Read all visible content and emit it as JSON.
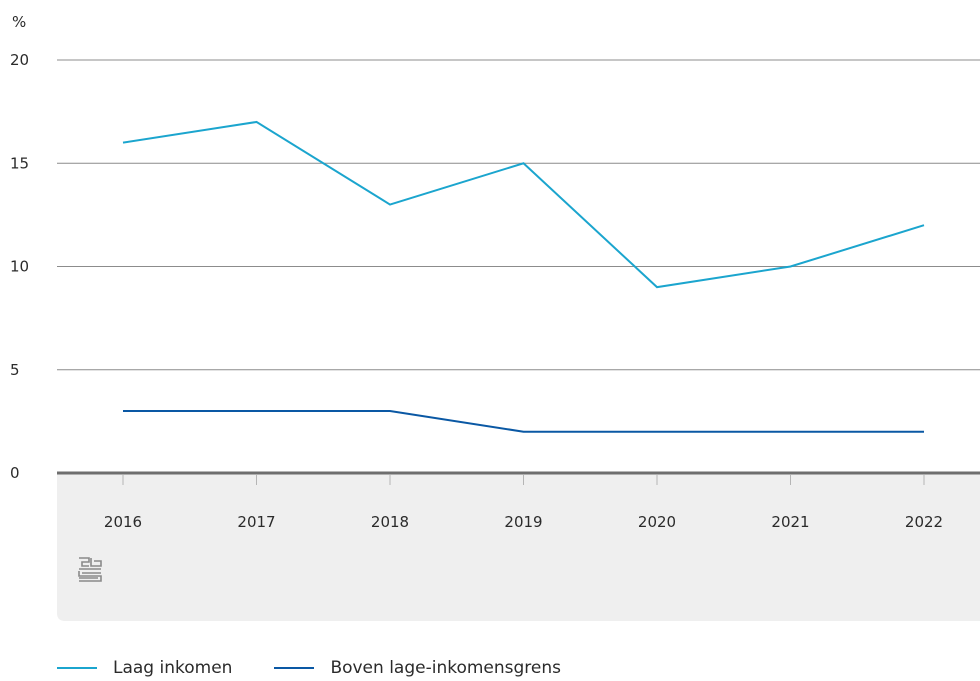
{
  "chart_data": {
    "type": "line",
    "ylabel": "%",
    "ylim": [
      0,
      20
    ],
    "yticks": [
      0,
      5,
      10,
      15,
      20
    ],
    "categories": [
      "2016",
      "2017",
      "2018",
      "2019",
      "2020",
      "2021",
      "2022"
    ],
    "series": [
      {
        "name": "Laag inkomen",
        "color": "#1ba5ce",
        "values": [
          16,
          17,
          13,
          15,
          9,
          10,
          12
        ]
      },
      {
        "name": "Boven lage-inkomensgrens",
        "color": "#0a58a4",
        "values": [
          3,
          3,
          3,
          2,
          2,
          2,
          2
        ]
      }
    ],
    "grid": true,
    "legend_position": "bottom-left",
    "logo": "cbs-logo-icon"
  }
}
